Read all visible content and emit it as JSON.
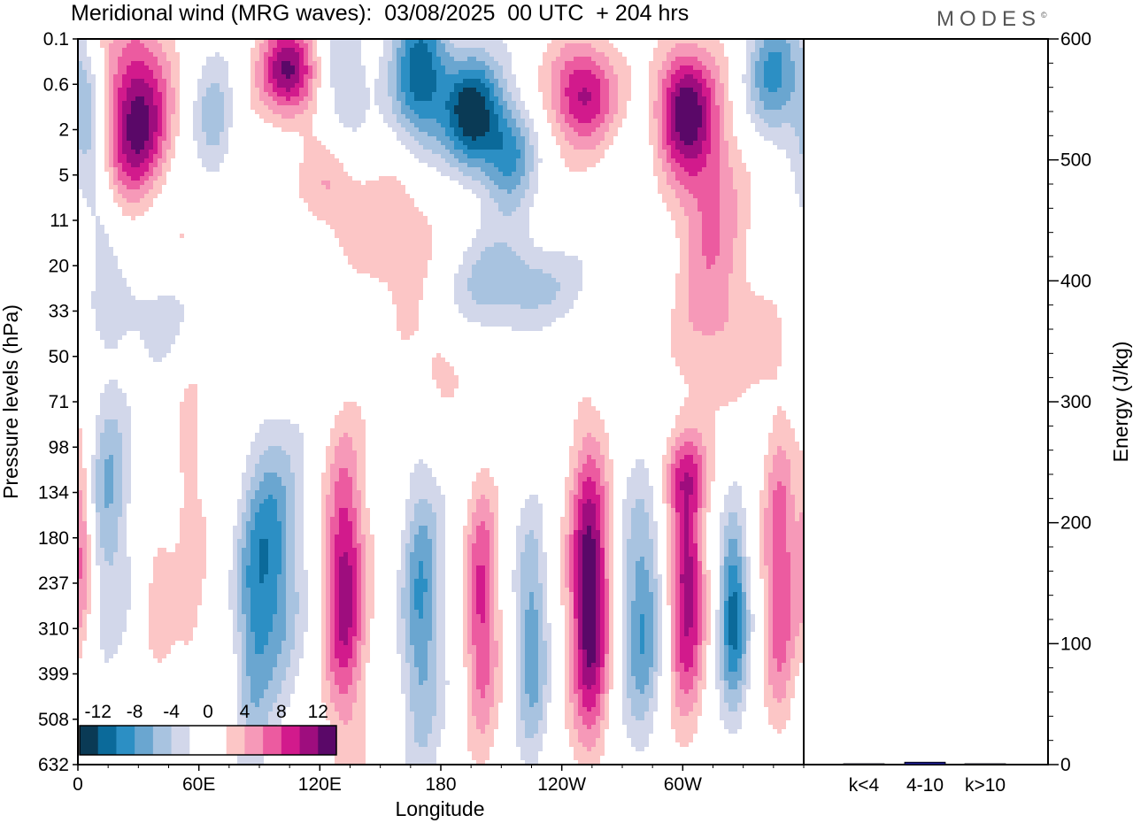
{
  "title": "Meridional wind (MRG waves):  03/08/2025  00 UTC  + 204 hrs",
  "brand": "MODES",
  "chart_data": [
    {
      "type": "heatmap",
      "title": "Meridional wind (MRG waves):  03/08/2025  00 UTC  + 204 hrs",
      "xlabel": "Longitude",
      "ylabel": "Pressure levels (hPa)",
      "x_tick_labels": [
        "0",
        "60E",
        "120E",
        "180",
        "120W",
        "60W"
      ],
      "y_tick_labels": [
        "0.1",
        "0.6",
        "2",
        "5",
        "11",
        "20",
        "33",
        "50",
        "71",
        "98",
        "134",
        "180",
        "237",
        "310",
        "399",
        "508",
        "632"
      ],
      "colorbar": {
        "labels": [
          "-12",
          "-8",
          "-4",
          "0",
          "4",
          "8",
          "12"
        ],
        "colors": [
          "#0a3a55",
          "#0b6a9a",
          "#2c8fc4",
          "#6aa6d0",
          "#a8c3e0",
          "#d2d7ea",
          "#ffffff",
          "#ffffff",
          "#fcc6c6",
          "#f699b8",
          "#ec5ba0",
          "#d21a8c",
          "#9e0d7e",
          "#5a0868"
        ]
      },
      "colors": {
        "neg1": "#d2d7ea",
        "neg2": "#a8c3e0",
        "neg3": "#6aa6d0",
        "neg4": "#2c8fc4",
        "neg5": "#0b6a9a",
        "neg6": "#0a3a55",
        "pos1": "#fcc6c6",
        "pos2": "#f699b8",
        "pos3": "#ec5ba0",
        "pos4": "#d21a8c",
        "pos5": "#9e0d7e",
        "pos6": "#5a0868"
      },
      "blobs": [
        {
          "lon": 30,
          "lev": 2.0,
          "sx": 12,
          "sy": 1.6,
          "amp": 13
        },
        {
          "lon": 5,
          "lev": 1.6,
          "sx": 6,
          "sy": 1.0,
          "amp": -6
        },
        {
          "lon": 12,
          "lev": 4.0,
          "sx": 8,
          "sy": 1.0,
          "amp": -4
        },
        {
          "lon": 50,
          "lev": 4.2,
          "sx": 10,
          "sy": 0.7,
          "amp": 4
        },
        {
          "lon": 68,
          "lev": 1.8,
          "sx": 7,
          "sy": 0.9,
          "amp": -5
        },
        {
          "lon": 105,
          "lev": 0.7,
          "sx": 10,
          "sy": 0.7,
          "amp": 12
        },
        {
          "lon": 132,
          "lev": 1.0,
          "sx": 8,
          "sy": 1.2,
          "amp": -4
        },
        {
          "lon": 170,
          "lev": 0.8,
          "sx": 10,
          "sy": 1.2,
          "amp": -12
        },
        {
          "lon": 195,
          "lev": 1.6,
          "sx": 10,
          "sy": 0.9,
          "amp": -13
        },
        {
          "lon": 214,
          "lev": 2.5,
          "sx": 9,
          "sy": 0.8,
          "amp": -8
        },
        {
          "lon": 206,
          "lev": 5.2,
          "sx": 30,
          "sy": 0.9,
          "amp": -3
        },
        {
          "lon": 126,
          "lev": 3.2,
          "sx": 10,
          "sy": 0.8,
          "amp": 5
        },
        {
          "lon": 160,
          "lev": 4.5,
          "sx": 20,
          "sy": 1.2,
          "amp": 4
        },
        {
          "lon": 250,
          "lev": 1.2,
          "sx": 12,
          "sy": 0.8,
          "amp": 10
        },
        {
          "lon": 300,
          "lev": 1.5,
          "sx": 10,
          "sy": 1.0,
          "amp": 12
        },
        {
          "lon": 312,
          "lev": 3.5,
          "sx": 12,
          "sy": 1.8,
          "amp": 6
        },
        {
          "lon": 345,
          "lev": 0.8,
          "sx": 10,
          "sy": 1.0,
          "amp": -9
        },
        {
          "lon": 40,
          "lev": 3.8,
          "sx": 14,
          "sy": 0.8,
          "amp": -5
        },
        {
          "lon": 30,
          "lev": 6.0,
          "sx": 25,
          "sy": 0.8,
          "amp": -3
        },
        {
          "lon": 180,
          "lev": 7.3,
          "sx": 10,
          "sy": 0.8,
          "amp": 3
        },
        {
          "lon": 330,
          "lev": 6.5,
          "sx": 25,
          "sy": 1.0,
          "amp": 3
        },
        {
          "lon": 225,
          "lev": 5.5,
          "sx": 22,
          "sy": 0.6,
          "amp": -3
        },
        {
          "lon": 15,
          "lev": 10.0,
          "sx": 7,
          "sy": 2.0,
          "amp": -6
        },
        {
          "lon": 55,
          "lev": 10.5,
          "sx": 6,
          "sy": 3.0,
          "amp": 3
        },
        {
          "lon": 95,
          "lev": 11.5,
          "sx": 10,
          "sy": 2.0,
          "amp": -9
        },
        {
          "lon": 86,
          "lev": 13.5,
          "sx": 6,
          "sy": 2.0,
          "amp": -4
        },
        {
          "lon": 132,
          "lev": 12.0,
          "sx": 7,
          "sy": 2.2,
          "amp": 11
        },
        {
          "lon": 170,
          "lev": 12.5,
          "sx": 7,
          "sy": 2.2,
          "amp": -8
        },
        {
          "lon": 200,
          "lev": 12.5,
          "sx": 6,
          "sy": 2.0,
          "amp": 9
        },
        {
          "lon": 225,
          "lev": 13.2,
          "sx": 6,
          "sy": 2.0,
          "amp": -8
        },
        {
          "lon": 254,
          "lev": 12.3,
          "sx": 7,
          "sy": 2.3,
          "amp": 15
        },
        {
          "lon": 280,
          "lev": 12.8,
          "sx": 7,
          "sy": 2.0,
          "amp": -8
        },
        {
          "lon": 302,
          "lev": 12.0,
          "sx": 6,
          "sy": 2.0,
          "amp": 11
        },
        {
          "lon": 325,
          "lev": 12.6,
          "sx": 5,
          "sy": 1.5,
          "amp": -11
        },
        {
          "lon": 348,
          "lev": 11.8,
          "sx": 6,
          "sy": 2.3,
          "amp": 9
        },
        {
          "lon": 2,
          "lev": 11.2,
          "sx": 4,
          "sy": 1.4,
          "amp": 6
        },
        {
          "lon": 40,
          "lev": 12.2,
          "sx": 5,
          "sy": 1.2,
          "amp": 4
        },
        {
          "lon": 300,
          "lev": 9.5,
          "sx": 10,
          "sy": 0.6,
          "amp": 4
        }
      ]
    },
    {
      "type": "bar",
      "categories": [
        "k<4",
        "4-10",
        "k>10"
      ],
      "values": [
        0,
        2,
        0
      ],
      "ylim": [
        0,
        600
      ],
      "y_tick_labels": [
        "0",
        "100",
        "200",
        "300",
        "400",
        "500",
        "600"
      ],
      "ylabel": "Energy (J/kg)",
      "bar_color": "#1a1a8c"
    }
  ]
}
